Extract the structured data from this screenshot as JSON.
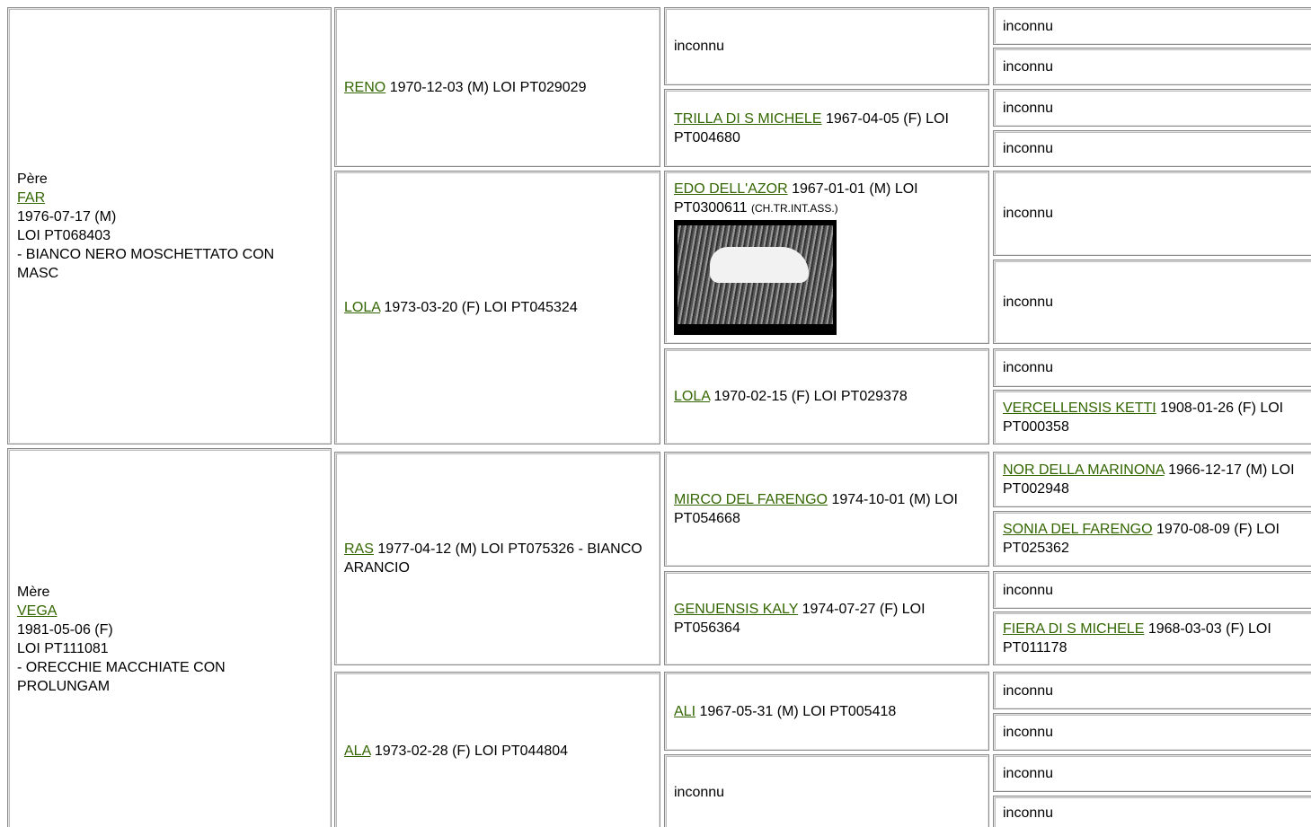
{
  "sire": {
    "label": "Père",
    "name": "FAR",
    "birth": "1976-07-17 (M)",
    "registry": "LOI PT068403",
    "color": "- BIANCO NERO MOSCHETTATO CON MASC"
  },
  "dam": {
    "label": "Mère",
    "name": "VEGA",
    "birth": "1981-05-06 (F)",
    "registry": "LOI PT111081",
    "color": "- ORECCHIE MACCHIATE CON PROLUNGAM"
  },
  "generation2": [
    {
      "name": "RENO",
      "info": "1970-12-03 (M) LOI PT029029"
    },
    {
      "name": "LOLA",
      "info": "1973-03-20 (F) LOI PT045324"
    },
    {
      "name": "RAS",
      "info": "1977-04-12 (M) LOI PT075326 - BIANCO ARANCIO"
    },
    {
      "name": "ALA",
      "info": "1973-02-28 (F) LOI PT044804"
    }
  ],
  "generation3": [
    {
      "text": "inconnu"
    },
    {
      "name": "TRILLA DI S MICHELE",
      "info": "1967-04-05 (F) LOI PT004680"
    },
    {
      "name": "EDO DELL'AZOR",
      "info": "1967-01-01 (M) LOI PT0300611",
      "title": "(CH.TR.INT.ASS.)"
    },
    {
      "name": "LOLA",
      "info": "1970-02-15 (F) LOI PT029378"
    },
    {
      "name": "MIRCO DEL FARENGO",
      "info": "1974-10-01 (M) LOI PT054668"
    },
    {
      "name": "GENUENSIS KALY",
      "info": "1974-07-27 (F) LOI PT056364"
    },
    {
      "name": "ALI",
      "info": "1967-05-31 (M) LOI PT005418"
    },
    {
      "text": "inconnu"
    }
  ],
  "generation4": [
    {
      "text": "inconnu"
    },
    {
      "text": "inconnu"
    },
    {
      "text": "inconnu"
    },
    {
      "text": "inconnu"
    },
    {
      "text": "inconnu"
    },
    {
      "text": "inconnu"
    },
    {
      "text": "inconnu"
    },
    {
      "name": "VERCELLENSIS KETTI",
      "info": "1908-01-26 (F) LOI PT000358"
    },
    {
      "name": "NOR DELLA MARINONA",
      "info": "1966-12-17 (M) LOI PT002948"
    },
    {
      "name": "SONIA DEL FARENGO",
      "info": "1970-08-09 (F) LOI PT025362"
    },
    {
      "text": "inconnu"
    },
    {
      "name": "FIERA DI S MICHELE",
      "info": "1968-03-03 (F) LOI PT011178"
    },
    {
      "text": "inconnu"
    },
    {
      "text": "inconnu"
    },
    {
      "text": "inconnu"
    },
    {
      "text": "inconnu"
    }
  ]
}
